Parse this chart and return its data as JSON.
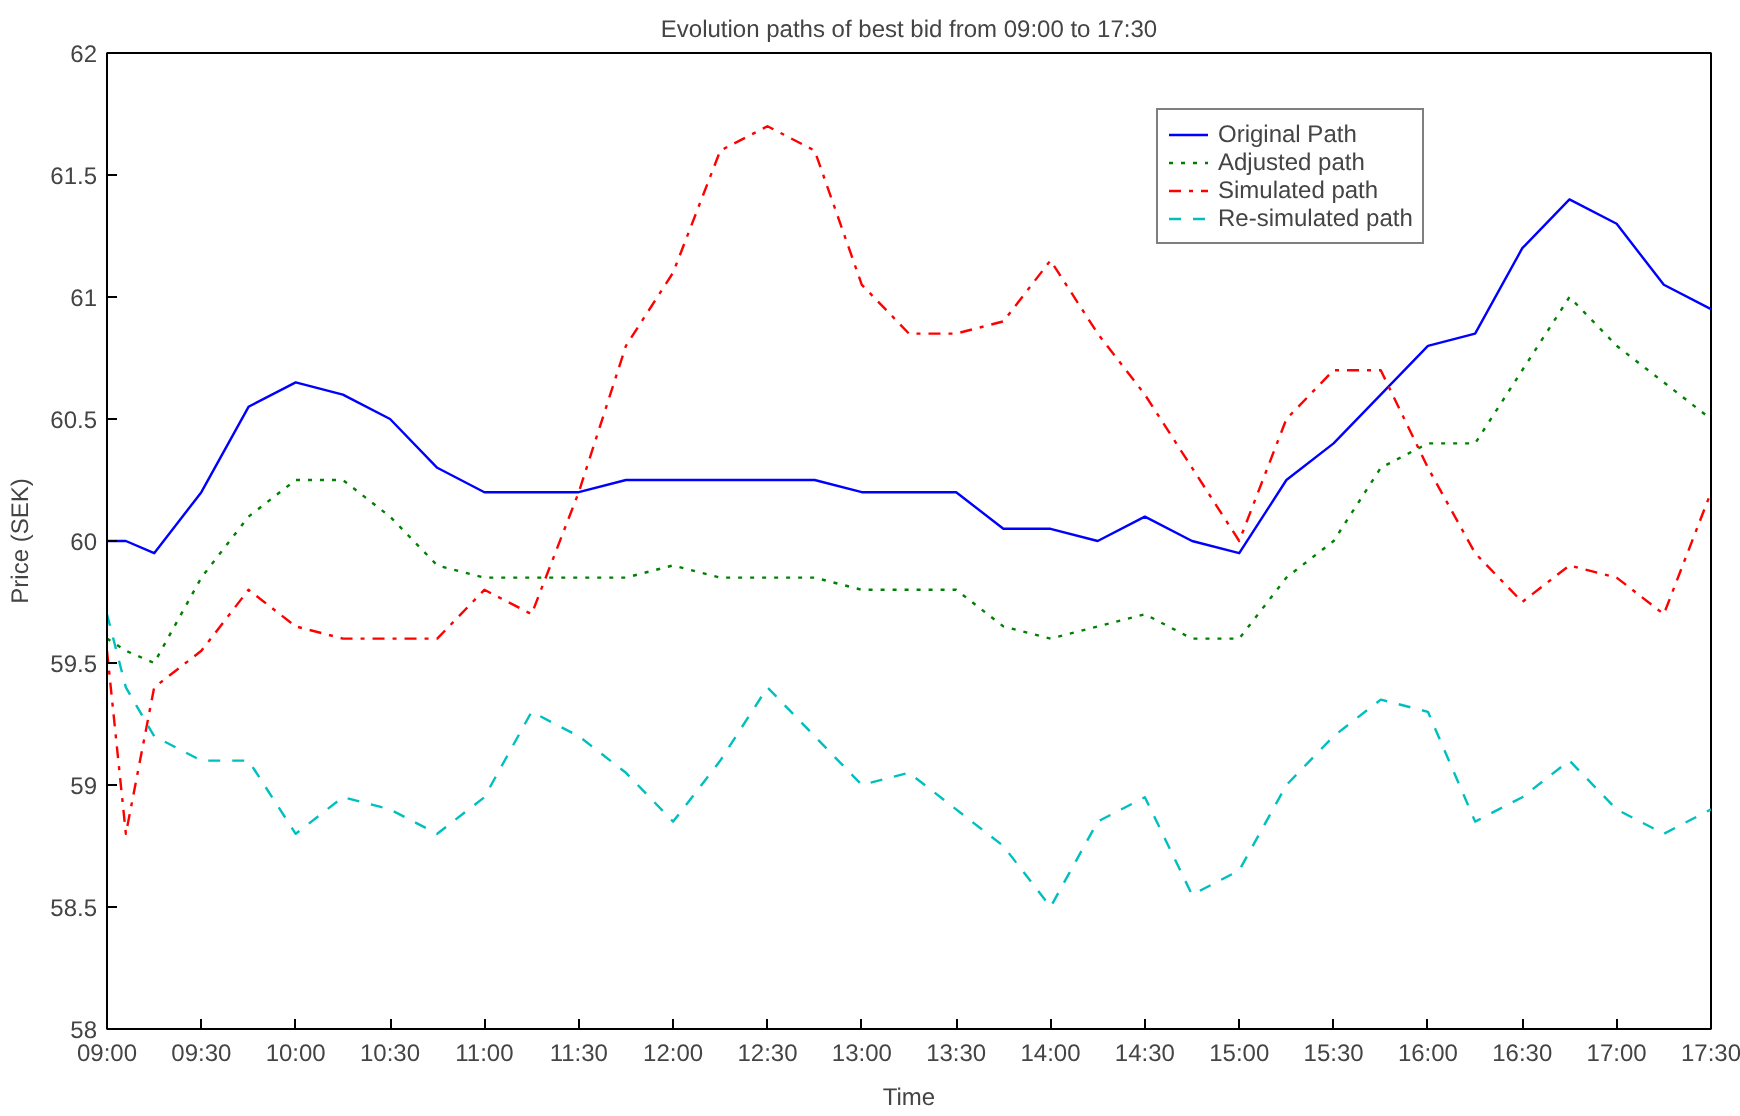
{
  "chart_data": {
    "type": "line",
    "title": "Evolution paths of best bid from 09:00 to 17:30",
    "xlabel": "Time",
    "ylabel": "Price (SEK)",
    "x": [
      9,
      9.1,
      9.25,
      9.5,
      9.75,
      10,
      10.25,
      10.5,
      10.75,
      11,
      11.25,
      11.5,
      11.75,
      12,
      12.25,
      12.5,
      12.75,
      13,
      13.25,
      13.5,
      13.75,
      14,
      14.25,
      14.5,
      14.75,
      15,
      15.25,
      15.5,
      15.75,
      16,
      16.25,
      16.5,
      16.75,
      17,
      17.25,
      17.5
    ],
    "series": [
      {
        "name": "Original Path",
        "color": "#0000ff",
        "line_style": "solid",
        "values": [
          60.0,
          60.0,
          59.95,
          60.2,
          60.55,
          60.65,
          60.6,
          60.5,
          60.3,
          60.2,
          60.2,
          60.2,
          60.25,
          60.25,
          60.25,
          60.25,
          60.25,
          60.2,
          60.2,
          60.2,
          60.05,
          60.05,
          60.0,
          60.1,
          60.0,
          59.95,
          60.25,
          60.4,
          60.6,
          60.8,
          60.85,
          61.2,
          61.4,
          61.3,
          61.05,
          60.95
        ]
      },
      {
        "name": "Adjusted path",
        "color": "#008000",
        "line_style": "dotted",
        "values": [
          59.6,
          59.55,
          59.5,
          59.85,
          60.1,
          60.25,
          60.25,
          60.1,
          59.9,
          59.85,
          59.85,
          59.85,
          59.85,
          59.9,
          59.85,
          59.85,
          59.85,
          59.8,
          59.8,
          59.8,
          59.65,
          59.6,
          59.65,
          59.7,
          59.6,
          59.6,
          59.85,
          60.0,
          60.3,
          60.4,
          60.4,
          60.7,
          61.0,
          60.8,
          60.65,
          60.5
        ]
      },
      {
        "name": "Simulated path",
        "color": "#ff0000",
        "line_style": "dashdot",
        "values": [
          59.55,
          58.8,
          59.4,
          59.55,
          59.8,
          59.65,
          59.6,
          59.6,
          59.6,
          59.8,
          59.7,
          60.2,
          60.8,
          61.1,
          61.6,
          61.7,
          61.6,
          61.05,
          60.85,
          60.85,
          60.9,
          61.15,
          60.85,
          60.6,
          60.3,
          60.0,
          60.5,
          60.7,
          60.7,
          60.3,
          59.95,
          59.75,
          59.9,
          59.85,
          59.7,
          60.2
        ]
      },
      {
        "name": "Re-simulated path",
        "color": "#00bfbf",
        "line_style": "dashed",
        "values": [
          59.7,
          59.4,
          59.2,
          59.1,
          59.1,
          58.8,
          58.95,
          58.9,
          58.8,
          58.95,
          59.3,
          59.2,
          59.05,
          58.85,
          59.1,
          59.4,
          59.2,
          59.0,
          59.05,
          58.9,
          58.75,
          58.5,
          58.85,
          58.95,
          58.55,
          58.65,
          59.0,
          59.2,
          59.35,
          59.3,
          58.85,
          58.95,
          59.1,
          58.9,
          58.8,
          58.9
        ]
      }
    ],
    "xlim": [
      9,
      17.5
    ],
    "xticks": [
      {
        "value": 9,
        "label": "09:00"
      },
      {
        "value": 9.5,
        "label": "09:30"
      },
      {
        "value": 10,
        "label": "10:00"
      },
      {
        "value": 10.5,
        "label": "10:30"
      },
      {
        "value": 11,
        "label": "11:00"
      },
      {
        "value": 11.5,
        "label": "11:30"
      },
      {
        "value": 12,
        "label": "12:00"
      },
      {
        "value": 12.5,
        "label": "12:30"
      },
      {
        "value": 13,
        "label": "13:00"
      },
      {
        "value": 13.5,
        "label": "13:30"
      },
      {
        "value": 14,
        "label": "14:00"
      },
      {
        "value": 14.5,
        "label": "14:30"
      },
      {
        "value": 15,
        "label": "15:00"
      },
      {
        "value": 15.5,
        "label": "15:30"
      },
      {
        "value": 16,
        "label": "16:00"
      },
      {
        "value": 16.5,
        "label": "16:30"
      },
      {
        "value": 17,
        "label": "17:00"
      },
      {
        "value": 17.5,
        "label": "17:30"
      }
    ],
    "ylim": [
      58,
      62
    ],
    "yticks": [
      58,
      58.5,
      59,
      59.5,
      60,
      60.5,
      61,
      61.5,
      62
    ],
    "grid": false,
    "legend": "top right",
    "marker": "none"
  }
}
